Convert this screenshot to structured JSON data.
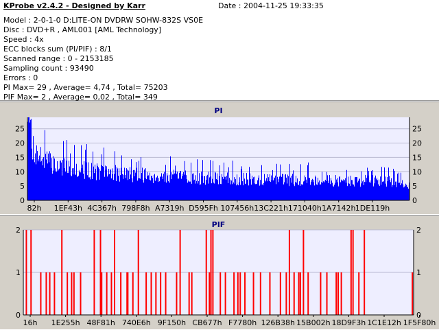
{
  "header": {
    "app_title": "KProbe v2.4.2 - Designed by Karr",
    "date": "Date : 2004-11-25 19:33:35",
    "lines": [
      "Model : 2-0-1-0 D:LITE-ON DVDRW SOHW-832S  VS0E",
      "Disc : DVD+R , AML001 [AML Technology]",
      "Speed : 4x",
      "ECC blocks sum (PI/PIF) : 8/1",
      "Scanned range : 0 - 2153185",
      "Sampling count : 93490",
      "Errors : 0",
      "PI Max= 29 , Average= 4,74 , Total= 75203",
      "PIF Max= 2 , Average= 0,02 , Total= 349"
    ]
  },
  "colors": {
    "plot_bg": "#eeeeff",
    "panel_bg": "#d4d0c8",
    "pi_bars": "#0000ff",
    "pif_bars": "#ff0000",
    "title_color": "#000080"
  },
  "chart_data": [
    {
      "type": "bar",
      "title": "PI",
      "ylim": [
        0,
        29
      ],
      "yticks": [
        0,
        5,
        10,
        15,
        20,
        25
      ],
      "xtick_labels": [
        "82h",
        "1EF43h",
        "4C367h",
        "798F8h",
        "A7319h",
        "D595Fh",
        "107456h",
        "13C221h",
        "171040h",
        "1A7142h",
        "1DE119h"
      ],
      "max": 29,
      "average": 4.74,
      "total": 75203,
      "grid": true,
      "envelope": [
        [
          0,
          27
        ],
        [
          0.01,
          25
        ],
        [
          0.02,
          21
        ],
        [
          0.04,
          18
        ],
        [
          0.08,
          15
        ],
        [
          0.12,
          14
        ],
        [
          0.16,
          13
        ],
        [
          0.22,
          12
        ],
        [
          0.3,
          11
        ],
        [
          0.4,
          10
        ],
        [
          0.5,
          9.5
        ],
        [
          0.6,
          9
        ],
        [
          0.7,
          9
        ],
        [
          0.8,
          8.5
        ],
        [
          0.9,
          8.5
        ],
        [
          0.96,
          8
        ],
        [
          1,
          6
        ]
      ]
    },
    {
      "type": "bar",
      "title": "PIF",
      "ylim": [
        0,
        2
      ],
      "yticks": [
        0,
        1,
        2
      ],
      "xtick_labels": [
        "16h",
        "1E255h",
        "48F81h",
        "740E6h",
        "9F150h",
        "CB677h",
        "F7780h",
        "126B38h",
        "15B002h",
        "18D9F3h",
        "1C1E12h",
        "1F5F80h"
      ],
      "max": 2,
      "average": 0.02,
      "total": 349,
      "grid": true,
      "bars": [
        [
          0.006,
          2
        ],
        [
          0.018,
          2
        ],
        [
          0.043,
          1
        ],
        [
          0.057,
          1
        ],
        [
          0.066,
          1
        ],
        [
          0.078,
          1
        ],
        [
          0.097,
          2
        ],
        [
          0.111,
          1
        ],
        [
          0.122,
          1
        ],
        [
          0.128,
          1
        ],
        [
          0.145,
          1
        ],
        [
          0.18,
          2
        ],
        [
          0.196,
          2
        ],
        [
          0.199,
          1
        ],
        [
          0.212,
          1
        ],
        [
          0.224,
          1
        ],
        [
          0.232,
          2
        ],
        [
          0.248,
          1
        ],
        [
          0.264,
          1
        ],
        [
          0.266,
          1
        ],
        [
          0.279,
          1
        ],
        [
          0.293,
          2
        ],
        [
          0.313,
          1
        ],
        [
          0.326,
          1
        ],
        [
          0.338,
          1
        ],
        [
          0.35,
          1
        ],
        [
          0.363,
          1
        ],
        [
          0.391,
          1
        ],
        [
          0.4,
          2
        ],
        [
          0.423,
          1
        ],
        [
          0.43,
          1
        ],
        [
          0.467,
          2
        ],
        [
          0.475,
          1
        ],
        [
          0.479,
          2
        ],
        [
          0.484,
          2
        ],
        [
          0.503,
          1
        ],
        [
          0.516,
          1
        ],
        [
          0.538,
          1
        ],
        [
          0.548,
          1
        ],
        [
          0.554,
          1
        ],
        [
          0.566,
          1
        ],
        [
          0.588,
          1
        ],
        [
          0.606,
          1
        ],
        [
          0.63,
          1
        ],
        [
          0.657,
          1
        ],
        [
          0.672,
          1
        ],
        [
          0.68,
          2
        ],
        [
          0.692,
          1
        ],
        [
          0.704,
          1
        ],
        [
          0.708,
          1
        ],
        [
          0.716,
          2
        ],
        [
          0.728,
          1
        ],
        [
          0.76,
          1
        ],
        [
          0.776,
          1
        ],
        [
          0.8,
          1
        ],
        [
          0.805,
          1
        ],
        [
          0.813,
          1
        ],
        [
          0.838,
          2
        ],
        [
          0.843,
          2
        ],
        [
          0.858,
          1
        ],
        [
          0.872,
          2
        ],
        [
          0.995,
          1
        ]
      ]
    }
  ]
}
